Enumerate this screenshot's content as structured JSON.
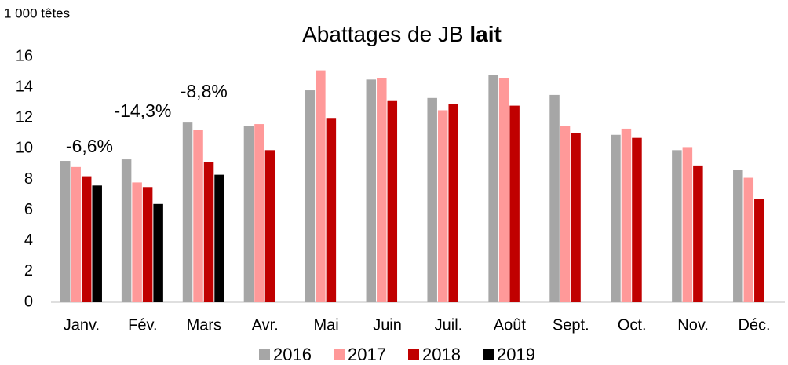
{
  "chart_data": {
    "type": "bar",
    "title": {
      "text": "Abattages de JB",
      "emphasis": "lait"
    },
    "y_label": "1 000 têtes",
    "categories": [
      "Janv.",
      "Fév.",
      "Mars",
      "Avr.",
      "Mai",
      "Juin",
      "Juil.",
      "Août",
      "Sept.",
      "Oct.",
      "Nov.",
      "Déc."
    ],
    "series": [
      {
        "name": "2016",
        "color": "#a6a6a6",
        "values": [
          9.2,
          9.3,
          11.7,
          11.5,
          13.8,
          14.5,
          13.3,
          14.8,
          13.5,
          10.9,
          9.9,
          8.6
        ]
      },
      {
        "name": "2017",
        "color": "#ff9999",
        "values": [
          8.8,
          7.8,
          11.2,
          11.6,
          15.1,
          14.6,
          12.5,
          14.6,
          11.5,
          11.3,
          10.1,
          8.1
        ]
      },
      {
        "name": "2018",
        "color": "#c00000",
        "values": [
          8.2,
          7.5,
          9.1,
          9.9,
          12.0,
          13.1,
          12.9,
          12.8,
          11.0,
          10.7,
          8.9,
          6.7
        ]
      },
      {
        "name": "2019",
        "color": "#000000",
        "values": [
          7.6,
          6.4,
          8.3,
          null,
          null,
          null,
          null,
          null,
          null,
          null,
          null,
          null
        ]
      }
    ],
    "annotations": [
      {
        "text": "-6,6%",
        "category": 0
      },
      {
        "text": "-14,3%",
        "category": 1
      },
      {
        "text": "-8,8%",
        "category": 2
      }
    ],
    "ylim": [
      0,
      16
    ],
    "yticks": [
      0,
      2,
      4,
      6,
      8,
      10,
      12,
      14,
      16
    ],
    "grid": false,
    "legend": "bottom"
  }
}
